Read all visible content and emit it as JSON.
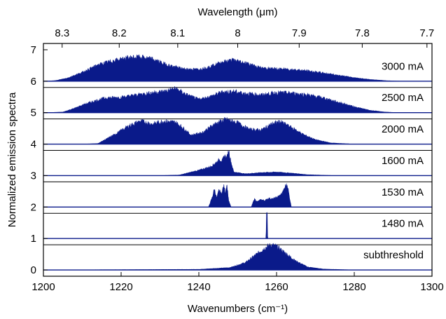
{
  "chart_data": {
    "type": "area",
    "x_axis": {
      "label": "Wavenumbers (cm⁻¹)",
      "range": [
        1200,
        1300
      ],
      "ticks": [
        1200,
        1220,
        1240,
        1260,
        1280,
        1300
      ]
    },
    "x2_axis": {
      "label": "Wavelength (μm)",
      "ticks": [
        8.3,
        8.2,
        8.1,
        8.0,
        7.9,
        7.8,
        7.7
      ],
      "tick_labels": [
        "8.3",
        "8.2",
        "8.1",
        "8",
        "7.9",
        "7.8",
        "7.7"
      ]
    },
    "y_axis": {
      "label": "Normalized emission spectra",
      "range": [
        -0.2,
        7.2
      ],
      "ticks": [
        0,
        1,
        2,
        3,
        4,
        5,
        6,
        7
      ]
    },
    "fill_color": "#0a1a8a",
    "series": [
      {
        "name": "subthreshold",
        "offset": 0,
        "label_y": 0.48,
        "envelope": [
          [
            1200,
            0
          ],
          [
            1240,
            0.02
          ],
          [
            1248,
            0.08
          ],
          [
            1252,
            0.25
          ],
          [
            1255,
            0.55
          ],
          [
            1257,
            0.75
          ],
          [
            1258.5,
            0.85
          ],
          [
            1260,
            0.8
          ],
          [
            1262,
            0.6
          ],
          [
            1265,
            0.3
          ],
          [
            1268,
            0.1
          ],
          [
            1272,
            0.03
          ],
          [
            1280,
            0
          ],
          [
            1300,
            0
          ]
        ]
      },
      {
        "name": "1480 mA",
        "offset": 1,
        "label_y": 1.48,
        "envelope": [
          [
            1200,
            0
          ],
          [
            1257.3,
            0
          ],
          [
            1257.4,
            0.85
          ],
          [
            1257.6,
            0.85
          ],
          [
            1257.7,
            0
          ],
          [
            1300,
            0
          ]
        ]
      },
      {
        "name": "1530 mA",
        "offset": 2,
        "label_y": 2.48,
        "envelope": [
          [
            1200,
            0
          ],
          [
            1242.5,
            0
          ],
          [
            1243.5,
            0.35
          ],
          [
            1244,
            0.62
          ],
          [
            1244.6,
            0.3
          ],
          [
            1245.2,
            0.58
          ],
          [
            1245.8,
            0.45
          ],
          [
            1246.4,
            0.72
          ],
          [
            1246.8,
            0.5
          ],
          [
            1247.2,
            0.78
          ],
          [
            1247.7,
            0.2
          ],
          [
            1248.3,
            0
          ],
          [
            1253.5,
            0
          ],
          [
            1254.3,
            0.28
          ],
          [
            1255,
            0.18
          ],
          [
            1256,
            0.25
          ],
          [
            1257,
            0.22
          ],
          [
            1258,
            0.3
          ],
          [
            1259,
            0.27
          ],
          [
            1260,
            0.33
          ],
          [
            1261,
            0.4
          ],
          [
            1261.8,
            0.55
          ],
          [
            1262.3,
            0.72
          ],
          [
            1262.8,
            0.75
          ],
          [
            1263.3,
            0.35
          ],
          [
            1263.8,
            0
          ],
          [
            1300,
            0
          ]
        ]
      },
      {
        "name": "1600 mA",
        "offset": 3,
        "label_y": 3.48,
        "envelope": [
          [
            1200,
            0
          ],
          [
            1230,
            0
          ],
          [
            1235,
            0.02
          ],
          [
            1240,
            0.18
          ],
          [
            1243,
            0.3
          ],
          [
            1244.5,
            0.45
          ],
          [
            1245.3,
            0.55
          ],
          [
            1246,
            0.5
          ],
          [
            1246.6,
            0.68
          ],
          [
            1247.2,
            0.6
          ],
          [
            1247.7,
            0.88
          ],
          [
            1248.2,
            0.5
          ],
          [
            1249,
            0.12
          ],
          [
            1252,
            0.06
          ],
          [
            1256,
            0.1
          ],
          [
            1260,
            0.12
          ],
          [
            1264,
            0.08
          ],
          [
            1268,
            0.03
          ],
          [
            1275,
            0
          ],
          [
            1300,
            0
          ]
        ]
      },
      {
        "name": "2000 mA",
        "offset": 4,
        "label_y": 4.48,
        "envelope": [
          [
            1200,
            0
          ],
          [
            1210,
            0
          ],
          [
            1214,
            0.02
          ],
          [
            1218,
            0.3
          ],
          [
            1222,
            0.62
          ],
          [
            1225,
            0.78
          ],
          [
            1228,
            0.68
          ],
          [
            1231,
            0.78
          ],
          [
            1234,
            0.74
          ],
          [
            1236,
            0.55
          ],
          [
            1238,
            0.3
          ],
          [
            1241,
            0.4
          ],
          [
            1244,
            0.68
          ],
          [
            1247,
            0.84
          ],
          [
            1250,
            0.72
          ],
          [
            1253,
            0.5
          ],
          [
            1256,
            0.48
          ],
          [
            1259,
            0.7
          ],
          [
            1261,
            0.76
          ],
          [
            1264,
            0.55
          ],
          [
            1267,
            0.32
          ],
          [
            1270,
            0.15
          ],
          [
            1274,
            0.04
          ],
          [
            1280,
            0
          ],
          [
            1300,
            0
          ]
        ]
      },
      {
        "name": "2500 mA",
        "offset": 5,
        "label_y": 5.48,
        "envelope": [
          [
            1200,
            0
          ],
          [
            1205,
            0.02
          ],
          [
            1208,
            0.15
          ],
          [
            1212,
            0.35
          ],
          [
            1216,
            0.5
          ],
          [
            1220,
            0.52
          ],
          [
            1224,
            0.6
          ],
          [
            1228,
            0.68
          ],
          [
            1231,
            0.72
          ],
          [
            1234,
            0.82
          ],
          [
            1237,
            0.6
          ],
          [
            1240,
            0.45
          ],
          [
            1243,
            0.55
          ],
          [
            1246,
            0.7
          ],
          [
            1249,
            0.72
          ],
          [
            1252,
            0.65
          ],
          [
            1256,
            0.6
          ],
          [
            1260,
            0.68
          ],
          [
            1264,
            0.66
          ],
          [
            1268,
            0.6
          ],
          [
            1272,
            0.5
          ],
          [
            1276,
            0.35
          ],
          [
            1280,
            0.2
          ],
          [
            1284,
            0.08
          ],
          [
            1288,
            0.02
          ],
          [
            1292,
            0
          ],
          [
            1300,
            0
          ]
        ]
      },
      {
        "name": "3000 mA",
        "offset": 6,
        "label_y": 6.48,
        "envelope": [
          [
            1200,
            0
          ],
          [
            1203,
            0.02
          ],
          [
            1206,
            0.1
          ],
          [
            1210,
            0.3
          ],
          [
            1214,
            0.55
          ],
          [
            1218,
            0.7
          ],
          [
            1222,
            0.8
          ],
          [
            1225,
            0.82
          ],
          [
            1228,
            0.75
          ],
          [
            1232,
            0.55
          ],
          [
            1236,
            0.42
          ],
          [
            1240,
            0.4
          ],
          [
            1243,
            0.5
          ],
          [
            1246,
            0.65
          ],
          [
            1249,
            0.72
          ],
          [
            1252,
            0.62
          ],
          [
            1256,
            0.45
          ],
          [
            1260,
            0.42
          ],
          [
            1264,
            0.4
          ],
          [
            1268,
            0.35
          ],
          [
            1272,
            0.28
          ],
          [
            1276,
            0.2
          ],
          [
            1280,
            0.12
          ],
          [
            1284,
            0.06
          ],
          [
            1288,
            0.02
          ],
          [
            1292,
            0
          ],
          [
            1300,
            0
          ]
        ]
      }
    ]
  }
}
